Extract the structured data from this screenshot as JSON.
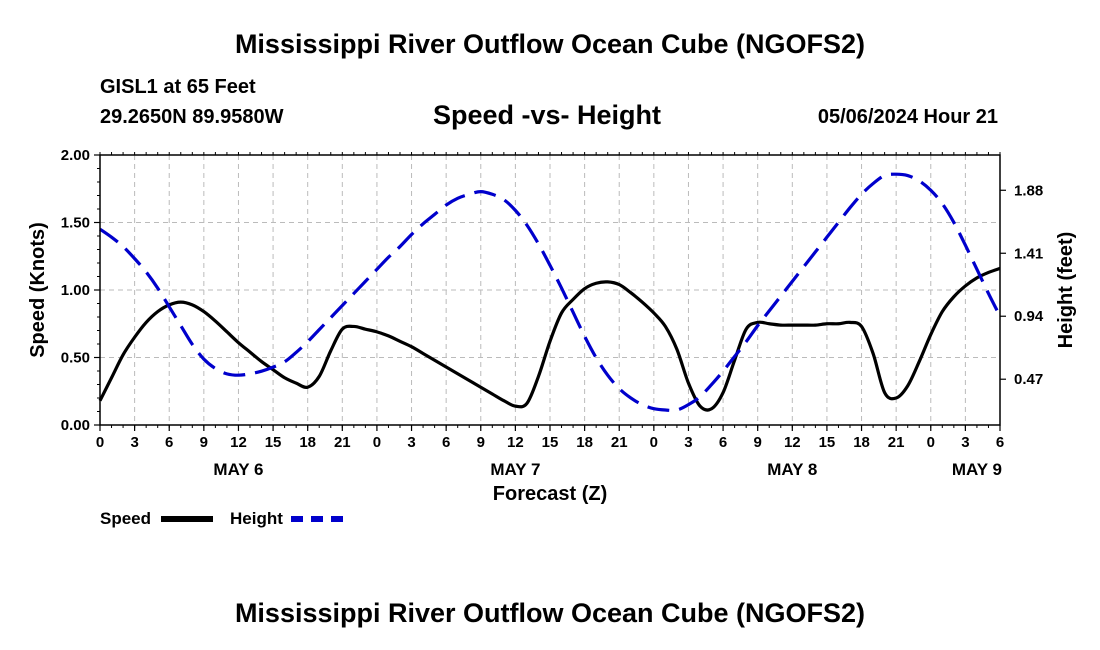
{
  "header": {
    "title": "Mississippi River Outflow Ocean Cube (NGOFS2)",
    "station": "GISL1 at 65 Feet",
    "coordinates": "29.2650N  89.9580W",
    "chart_title": "Speed -vs- Height",
    "datetime": "05/06/2024 Hour 21"
  },
  "footer": {
    "title": "Mississippi River Outflow Ocean Cube (NGOFS2)"
  },
  "legend": {
    "speed_label": "Speed",
    "height_label": "Height"
  },
  "colors": {
    "speed": "#000000",
    "height": "#0000cc",
    "grid": "#bbbbbb"
  },
  "chart_data": {
    "type": "line",
    "title": "Speed -vs- Height",
    "xlabel": "Forecast (Z)",
    "ylabel": "Speed (Knots)",
    "y2label": "Height (feet)",
    "x_unit": "hours from 05/06 00Z",
    "xlim": [
      0,
      78
    ],
    "ylim": [
      0,
      2.0
    ],
    "y2lim": [
      0.1283,
      2.1432
    ],
    "x_ticks": [
      0,
      3,
      6,
      9,
      12,
      15,
      18,
      21,
      24,
      27,
      30,
      33,
      36,
      39,
      42,
      45,
      48,
      51,
      54,
      57,
      60,
      63,
      66,
      69,
      72,
      75,
      78
    ],
    "x_tick_labels": [
      "0",
      "3",
      "6",
      "9",
      "12",
      "15",
      "18",
      "21",
      "0",
      "3",
      "6",
      "9",
      "12",
      "15",
      "18",
      "21",
      "0",
      "3",
      "6",
      "9",
      "12",
      "15",
      "18",
      "21",
      "0",
      "3",
      "6"
    ],
    "y_ticks": [
      0,
      0.5,
      1.0,
      1.5,
      2.0
    ],
    "y_tick_labels": [
      "0.00",
      "0.50",
      "1.00",
      "1.50",
      "2.00"
    ],
    "y2_ticks": [
      0.47,
      0.94,
      1.41,
      1.88
    ],
    "y2_tick_labels": [
      "0.47",
      "0.94",
      "1.41",
      "1.88"
    ],
    "day_labels": [
      {
        "x": 12,
        "label": "MAY 6"
      },
      {
        "x": 36,
        "label": "MAY 7"
      },
      {
        "x": 60,
        "label": "MAY 8"
      },
      {
        "x": 76,
        "label": "MAY 9"
      }
    ],
    "series": [
      {
        "name": "Speed",
        "axis": "left",
        "style": "solid",
        "x": [
          0,
          1,
          2,
          3,
          4,
          5,
          6,
          7,
          8,
          9,
          10,
          11,
          12,
          13,
          14,
          15,
          16,
          17,
          18,
          19,
          20,
          21,
          22,
          23,
          24,
          25,
          26,
          27,
          28,
          29,
          30,
          31,
          32,
          33,
          34,
          35,
          36,
          37,
          38,
          39,
          40,
          41,
          42,
          43,
          44,
          45,
          46,
          47,
          48,
          49,
          50,
          51,
          52,
          53,
          54,
          55,
          56,
          57,
          58,
          59,
          60,
          61,
          62,
          63,
          64,
          65,
          66,
          67,
          68,
          69,
          70,
          71,
          72,
          73,
          74,
          75,
          76,
          77,
          78
        ],
        "values": [
          0.18,
          0.35,
          0.52,
          0.65,
          0.76,
          0.84,
          0.89,
          0.91,
          0.89,
          0.84,
          0.77,
          0.69,
          0.61,
          0.54,
          0.47,
          0.41,
          0.35,
          0.31,
          0.28,
          0.36,
          0.55,
          0.71,
          0.73,
          0.71,
          0.69,
          0.66,
          0.62,
          0.58,
          0.53,
          0.48,
          0.43,
          0.38,
          0.33,
          0.28,
          0.23,
          0.18,
          0.14,
          0.16,
          0.36,
          0.62,
          0.83,
          0.93,
          1.01,
          1.05,
          1.06,
          1.04,
          0.98,
          0.91,
          0.83,
          0.73,
          0.56,
          0.31,
          0.14,
          0.12,
          0.24,
          0.48,
          0.71,
          0.76,
          0.75,
          0.74,
          0.74,
          0.74,
          0.74,
          0.75,
          0.75,
          0.76,
          0.73,
          0.53,
          0.24,
          0.2,
          0.29,
          0.47,
          0.67,
          0.84,
          0.95,
          1.03,
          1.09,
          1.13,
          1.16
        ]
      },
      {
        "name": "Height",
        "axis": "right",
        "style": "dashed",
        "x": [
          0,
          1,
          2,
          3,
          4,
          5,
          6,
          7,
          8,
          9,
          10,
          11,
          12,
          13,
          14,
          15,
          16,
          17,
          18,
          19,
          20,
          21,
          22,
          23,
          24,
          25,
          26,
          27,
          28,
          29,
          30,
          31,
          32,
          33,
          34,
          35,
          36,
          37,
          38,
          39,
          40,
          41,
          42,
          43,
          44,
          45,
          46,
          47,
          48,
          49,
          50,
          51,
          52,
          53,
          54,
          55,
          56,
          57,
          58,
          59,
          60,
          61,
          62,
          63,
          64,
          65,
          66,
          67,
          68,
          69,
          70,
          71,
          72,
          73,
          74,
          75,
          76,
          77,
          78
        ],
        "values": [
          1.59,
          1.53,
          1.46,
          1.37,
          1.27,
          1.15,
          1.01,
          0.87,
          0.73,
          0.62,
          0.55,
          0.51,
          0.5,
          0.51,
          0.53,
          0.56,
          0.6,
          0.67,
          0.75,
          0.84,
          0.93,
          1.02,
          1.11,
          1.2,
          1.29,
          1.38,
          1.46,
          1.55,
          1.63,
          1.7,
          1.77,
          1.82,
          1.85,
          1.87,
          1.85,
          1.81,
          1.73,
          1.62,
          1.48,
          1.32,
          1.15,
          0.97,
          0.79,
          0.63,
          0.5,
          0.4,
          0.33,
          0.28,
          0.25,
          0.24,
          0.24,
          0.28,
          0.34,
          0.43,
          0.53,
          0.64,
          0.75,
          0.87,
          0.98,
          1.09,
          1.2,
          1.31,
          1.42,
          1.53,
          1.64,
          1.75,
          1.85,
          1.93,
          1.99,
          2.0,
          1.99,
          1.95,
          1.88,
          1.78,
          1.64,
          1.47,
          1.29,
          1.11,
          0.94
        ]
      }
    ]
  }
}
